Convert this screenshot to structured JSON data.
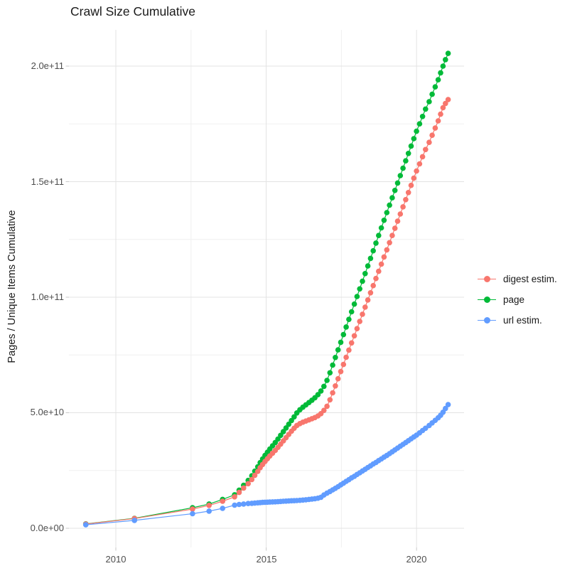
{
  "chart_data": {
    "type": "scatter",
    "title": "Crawl Size Cumulative",
    "xlabel": "",
    "ylabel": "Pages / Unique Items Cumulative",
    "y_unit": "pages (values in 1e9)",
    "legend_position": "right",
    "grid": true,
    "xlim": [
      2008.44,
      2021.58
    ],
    "ylim_e9": [
      -8.31,
      215.69
    ],
    "x_ticks": [
      {
        "label": "2010",
        "year": 2010
      },
      {
        "label": "2015",
        "year": 2015
      },
      {
        "label": "2020",
        "year": 2020
      }
    ],
    "x_minor_ticks": [
      2012.5,
      2017.5
    ],
    "y_ticks": [
      {
        "label": "0.0e+00",
        "value_e9": 0
      },
      {
        "label": "5.0e+10",
        "value_e9": 50
      },
      {
        "label": "1.0e+11",
        "value_e9": 100
      },
      {
        "label": "1.5e+11",
        "value_e9": 150
      },
      {
        "label": "2.0e+11",
        "value_e9": 200
      }
    ],
    "y_minor_ticks_e9": [
      25,
      75,
      125,
      175
    ],
    "theme": {
      "background": "#ffffff",
      "grid_major": "#e3e3e3",
      "grid_minor": "#f0f0f0",
      "tick_mark": "#c9c9c9",
      "tick_text": "#4d4d4d",
      "title_text": "#1a1a1a"
    },
    "years": [
      2009.0,
      2010.62,
      2012.55,
      2013.1,
      2013.55,
      2013.95,
      2014.1,
      2014.25,
      2014.4,
      2014.52,
      2014.62,
      2014.72,
      2014.8,
      2014.88,
      2014.96,
      2015.04,
      2015.12,
      2015.21,
      2015.3,
      2015.39,
      2015.48,
      2015.57,
      2015.66,
      2015.75,
      2015.84,
      2015.93,
      2016.02,
      2016.12,
      2016.22,
      2016.32,
      2016.42,
      2016.52,
      2016.62,
      2016.72,
      2016.82,
      2016.92,
      2017.02,
      2017.12,
      2017.21,
      2017.3,
      2017.39,
      2017.48,
      2017.57,
      2017.66,
      2017.75,
      2017.84,
      2017.93,
      2018.02,
      2018.11,
      2018.2,
      2018.29,
      2018.38,
      2018.47,
      2018.56,
      2018.65,
      2018.74,
      2018.83,
      2018.92,
      2019.01,
      2019.1,
      2019.19,
      2019.28,
      2019.37,
      2019.46,
      2019.55,
      2019.64,
      2019.73,
      2019.82,
      2019.91,
      2020.0,
      2020.1,
      2020.2,
      2020.3,
      2020.42,
      2020.52,
      2020.62,
      2020.72,
      2020.8,
      2020.88,
      2020.96,
      2021.05
    ],
    "series": [
      {
        "name": "digest estim.",
        "color": "#F8766D",
        "values_e9": [
          1.8,
          4.2,
          8.3,
          9.9,
          11.7,
          13.6,
          15.5,
          17.4,
          19.3,
          21.1,
          22.9,
          24.6,
          26.2,
          27.6,
          28.9,
          30.1,
          31.3,
          32.5,
          33.7,
          35.0,
          36.4,
          37.8,
          39.2,
          40.6,
          42.0,
          43.3,
          44.5,
          45.3,
          45.9,
          46.4,
          46.9,
          47.4,
          47.9,
          48.6,
          49.6,
          51.0,
          52.8,
          55.6,
          58.6,
          61.6,
          64.7,
          67.8,
          70.9,
          74.0,
          77.1,
          80.2,
          83.3,
          86.4,
          89.5,
          92.6,
          95.7,
          98.8,
          101.9,
          105.0,
          108.1,
          111.2,
          114.3,
          117.4,
          120.5,
          123.6,
          126.7,
          129.8,
          132.9,
          136.0,
          139.1,
          142.2,
          145.3,
          148.4,
          151.5,
          154.6,
          157.7,
          160.8,
          163.9,
          167.0,
          170.1,
          173.2,
          176.3,
          179.2,
          182.0,
          183.8,
          185.5
        ]
      },
      {
        "name": "page",
        "color": "#00BA38",
        "values_e9": [
          1.9,
          4.3,
          8.9,
          10.5,
          12.5,
          14.5,
          16.5,
          18.6,
          20.7,
          22.7,
          24.7,
          26.6,
          28.4,
          30.0,
          31.5,
          32.9,
          34.3,
          35.7,
          37.1,
          38.6,
          40.2,
          41.8,
          43.4,
          45.0,
          46.6,
          48.2,
          49.9,
          51.3,
          52.4,
          53.4,
          54.4,
          55.4,
          56.5,
          57.8,
          59.4,
          61.4,
          64.0,
          67.3,
          70.6,
          73.9,
          77.2,
          80.5,
          83.8,
          87.1,
          90.4,
          93.7,
          97.0,
          100.3,
          103.6,
          106.9,
          110.2,
          113.5,
          116.8,
          120.1,
          123.4,
          126.7,
          130.0,
          133.3,
          136.6,
          139.8,
          143.0,
          146.2,
          149.4,
          152.6,
          155.8,
          159.0,
          162.2,
          165.4,
          168.6,
          171.8,
          175.0,
          178.2,
          181.4,
          184.6,
          187.8,
          191.0,
          194.1,
          197.1,
          200.0,
          202.8,
          205.5
        ]
      },
      {
        "name": "url estim.",
        "color": "#619CFF",
        "values_e9": [
          1.5,
          3.4,
          6.3,
          7.4,
          8.6,
          10.0,
          10.3,
          10.5,
          10.7,
          10.8,
          10.9,
          11.0,
          11.1,
          11.2,
          11.25,
          11.3,
          11.35,
          11.4,
          11.45,
          11.5,
          11.6,
          11.7,
          11.75,
          11.8,
          11.9,
          11.95,
          12.0,
          12.1,
          12.2,
          12.35,
          12.5,
          12.65,
          12.8,
          13.0,
          13.4,
          14.4,
          15.2,
          15.9,
          16.6,
          17.3,
          18.0,
          18.8,
          19.5,
          20.3,
          21.0,
          21.8,
          22.5,
          23.3,
          24.0,
          24.8,
          25.5,
          26.3,
          27.0,
          27.8,
          28.5,
          29.3,
          30.0,
          30.8,
          31.5,
          32.3,
          33.1,
          33.9,
          34.7,
          35.5,
          36.3,
          37.1,
          37.9,
          38.7,
          39.5,
          40.3,
          41.3,
          42.3,
          43.3,
          44.5,
          45.6,
          46.7,
          47.8,
          48.9,
          50.2,
          51.8,
          53.5
        ]
      }
    ]
  }
}
